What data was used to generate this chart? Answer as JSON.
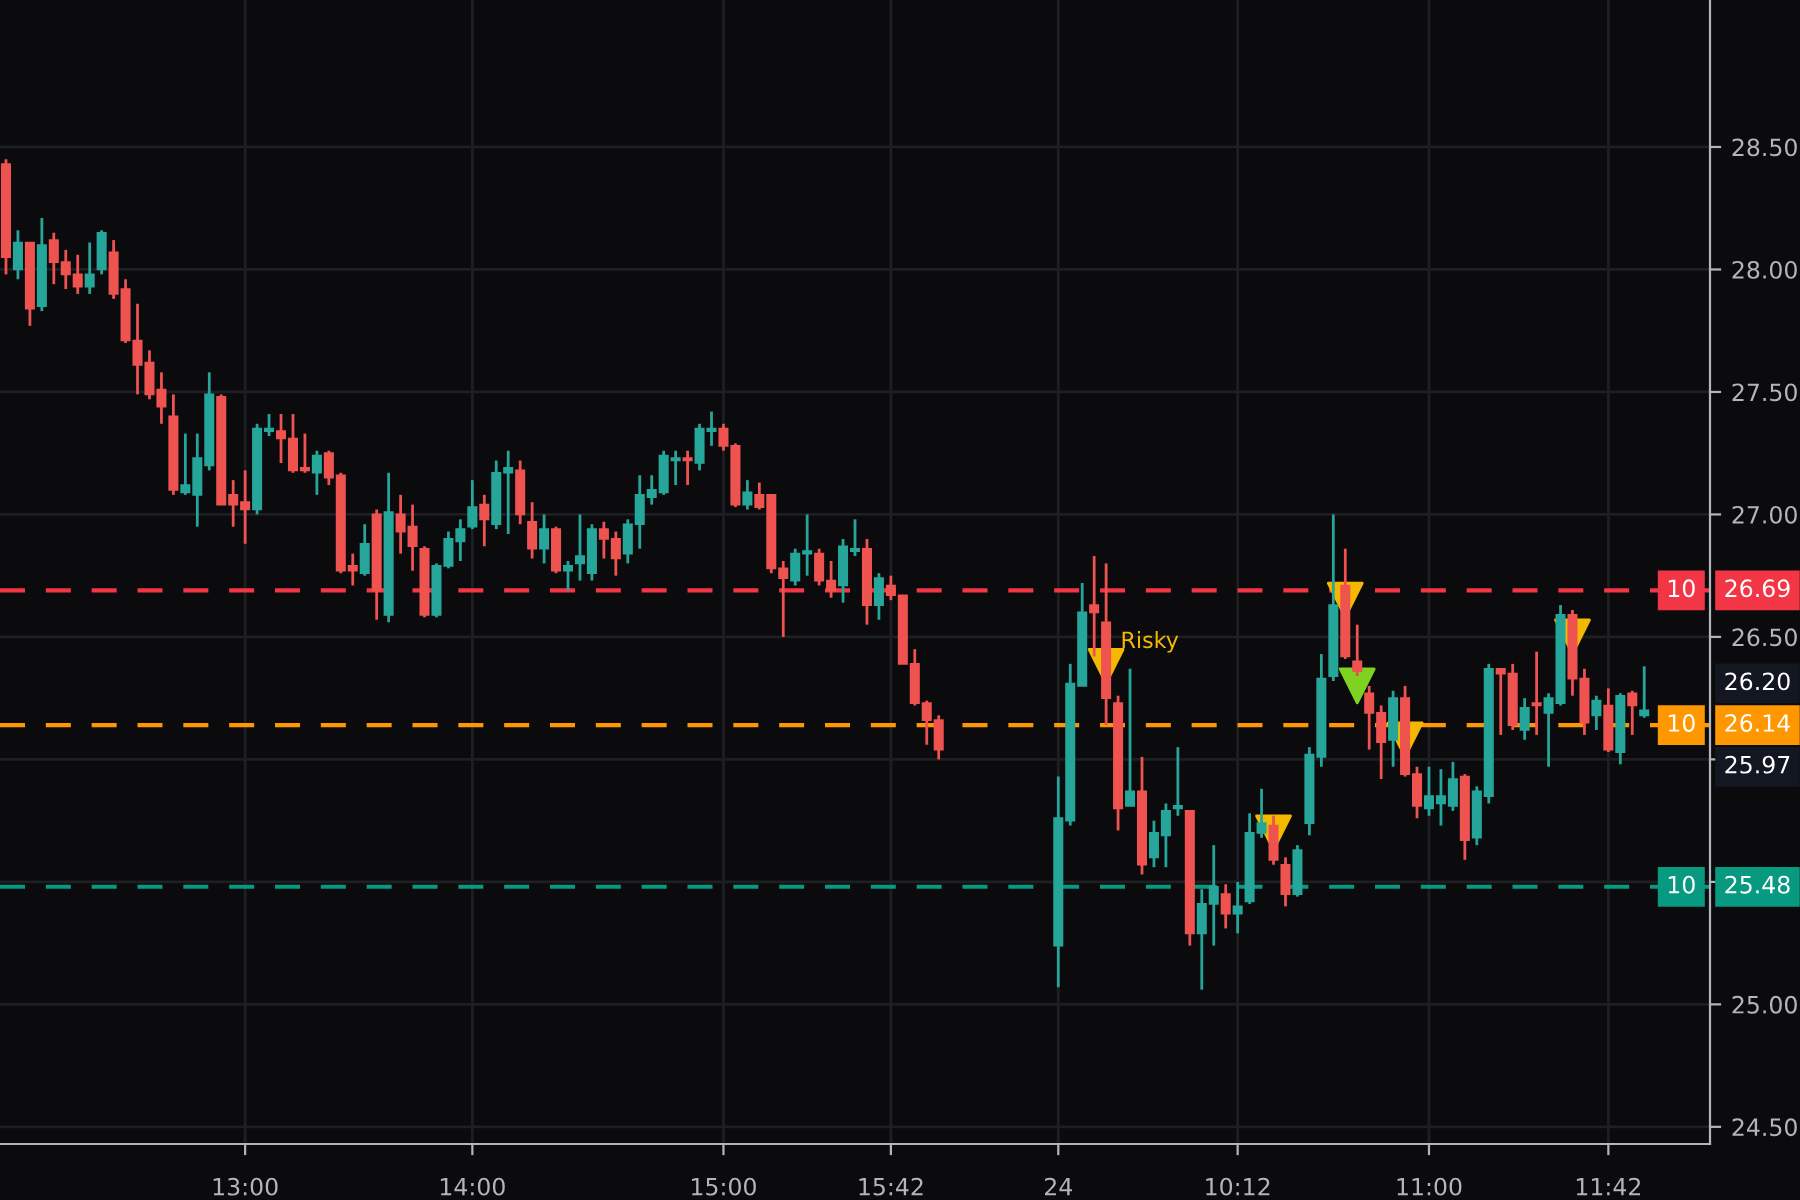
{
  "chart_data": {
    "type": "candlestick",
    "categories": [
      null,
      null,
      null,
      null,
      null,
      null,
      null,
      null,
      null,
      null,
      null,
      null,
      null,
      null,
      null,
      null,
      null,
      null,
      null,
      null,
      "13:00",
      null,
      null,
      null,
      null,
      null,
      null,
      null,
      null,
      null,
      null,
      null,
      null,
      null,
      null,
      null,
      null,
      null,
      null,
      "14:00",
      null,
      null,
      null,
      null,
      null,
      null,
      null,
      null,
      null,
      null,
      null,
      null,
      null,
      null,
      null,
      null,
      null,
      null,
      null,
      null,
      "15:00",
      null,
      null,
      null,
      null,
      null,
      null,
      null,
      null,
      null,
      null,
      null,
      null,
      null,
      "15:42",
      null,
      null,
      null,
      null,
      null,
      null,
      null,
      null,
      null,
      null,
      null,
      null,
      null,
      "24",
      null,
      null,
      null,
      null,
      null,
      null,
      null,
      null,
      null,
      null,
      null,
      null,
      null,
      null,
      "10:12",
      null,
      null,
      null,
      null,
      null,
      null,
      null,
      null,
      null,
      null,
      null,
      null,
      null,
      null,
      null,
      "11:00",
      null,
      null,
      null,
      null,
      null,
      null,
      null,
      null,
      null,
      null,
      null,
      null,
      null,
      null,
      "11:42",
      null,
      null,
      null,
      null,
      null,
      null,
      null,
      null
    ],
    "colors": [
      "#ef5350",
      "#26a69a",
      "#ef5350",
      "#26a69a",
      "#ef5350",
      "#ef5350",
      "#ef5350",
      "#26a69a",
      "#26a69a",
      "#ef5350",
      "#ef5350",
      "#ef5350",
      "#ef5350",
      "#ef5350",
      "#ef5350",
      "#26a69a",
      "#26a69a",
      "#26a69a",
      "#ef5350",
      "#ef5350",
      "#ef5350",
      "#26a69a",
      "#26a69a",
      "#ef5350",
      "#ef5350",
      "#ef5350",
      "#26a69a",
      "#ef5350",
      "#ef5350",
      "#ef5350",
      "#26a69a",
      "#ef5350",
      "#26a69a",
      "#ef5350",
      "#ef5350",
      "#ef5350",
      "#26a69a",
      "#26a69a",
      "#26a69a",
      "#26a69a",
      "#ef5350",
      "#26a69a",
      "#26a69a",
      "#ef5350",
      "#ef5350",
      "#26a69a",
      "#ef5350",
      "#26a69a",
      "#26a69a",
      "#26a69a",
      "#ef5350",
      "#ef5350",
      "#26a69a",
      "#26a69a",
      "#26a69a",
      "#26a69a",
      "#26a69a",
      "#ef5350",
      "#26a69a",
      "#26a69a",
      "#ef5350",
      "#ef5350",
      "#26a69a",
      "#ef5350",
      "#ef5350",
      "#ef5350",
      "#26a69a",
      "#26a69a",
      "#ef5350",
      "#ef5350",
      "#26a69a",
      "#26a69a",
      "#ef5350",
      "#26a69a",
      "#ef5350",
      "#ef5350",
      "#ef5350",
      "#ef5350",
      "#ef5350",
      null,
      null,
      null,
      null,
      null,
      null,
      null,
      null,
      null,
      "#26a69a",
      "#26a69a",
      "#26a69a",
      "#ef5350",
      "#ef5350",
      "#ef5350",
      "#26a69a",
      "#ef5350",
      "#26a69a",
      "#26a69a",
      "#26a69a",
      "#ef5350",
      "#26a69a",
      "#26a69a",
      "#ef5350",
      "#26a69a",
      "#26a69a",
      "#26a69a",
      "#ef5350",
      "#ef5350",
      "#26a69a",
      "#26a69a",
      "#26a69a",
      "#26a69a",
      "#ef5350",
      "#ef5350",
      "#ef5350",
      "#ef5350",
      "#26a69a",
      "#ef5350",
      "#ef5350",
      "#26a69a",
      "#26a69a",
      "#26a69a",
      "#ef5350",
      "#26a69a",
      "#26a69a",
      "#ef5350",
      "#ef5350",
      "#26a69a",
      "#ef5350",
      "#26a69a",
      "#26a69a",
      "#ef5350",
      "#ef5350",
      "#26a69a",
      "#ef5350",
      "#26a69a",
      "#ef5350",
      "#26a69a",
      null,
      null,
      null,
      null,
      null
    ],
    "ohlc": [
      [
        28.43,
        28.45,
        27.98,
        28.05
      ],
      [
        28.0,
        28.16,
        27.96,
        28.11
      ],
      [
        28.11,
        28.11,
        27.77,
        27.84
      ],
      [
        27.85,
        28.21,
        27.83,
        28.1
      ],
      [
        28.12,
        28.15,
        27.94,
        28.03
      ],
      [
        28.03,
        28.08,
        27.92,
        27.98
      ],
      [
        27.98,
        28.06,
        27.9,
        27.93
      ],
      [
        27.93,
        28.11,
        27.9,
        27.98
      ],
      [
        28.0,
        28.16,
        27.98,
        28.15
      ],
      [
        28.07,
        28.12,
        27.88,
        27.9
      ],
      [
        27.92,
        27.96,
        27.7,
        27.71
      ],
      [
        27.71,
        27.86,
        27.49,
        27.61
      ],
      [
        27.62,
        27.67,
        27.47,
        27.49
      ],
      [
        27.51,
        27.58,
        27.37,
        27.44
      ],
      [
        27.4,
        27.49,
        27.08,
        27.1
      ],
      [
        27.09,
        27.33,
        27.08,
        27.12
      ],
      [
        27.08,
        27.33,
        26.95,
        27.23
      ],
      [
        27.2,
        27.58,
        27.18,
        27.49
      ],
      [
        27.48,
        27.49,
        27.04,
        27.04
      ],
      [
        27.08,
        27.14,
        26.95,
        27.04
      ],
      [
        27.05,
        27.18,
        26.88,
        27.02
      ],
      [
        27.02,
        27.37,
        27.0,
        27.35
      ],
      [
        27.34,
        27.41,
        27.32,
        27.35
      ],
      [
        27.34,
        27.41,
        27.21,
        27.31
      ],
      [
        27.31,
        27.41,
        27.17,
        27.18
      ],
      [
        27.19,
        27.33,
        27.17,
        27.18
      ],
      [
        27.17,
        27.26,
        27.08,
        27.24
      ],
      [
        27.25,
        27.26,
        27.12,
        27.15
      ],
      [
        27.16,
        27.17,
        26.76,
        26.77
      ],
      [
        26.79,
        26.84,
        26.71,
        26.77
      ],
      [
        26.76,
        26.96,
        26.75,
        26.88
      ],
      [
        27.0,
        27.02,
        26.57,
        26.69
      ],
      [
        26.59,
        27.17,
        26.56,
        27.01
      ],
      [
        27.0,
        27.08,
        26.84,
        26.93
      ],
      [
        26.95,
        27.04,
        26.77,
        26.87
      ],
      [
        26.86,
        26.87,
        26.58,
        26.59
      ],
      [
        26.59,
        26.8,
        26.58,
        26.79
      ],
      [
        26.79,
        26.93,
        26.78,
        26.9
      ],
      [
        26.89,
        26.98,
        26.81,
        26.94
      ],
      [
        26.95,
        27.14,
        26.94,
        27.03
      ],
      [
        27.04,
        27.08,
        26.87,
        26.98
      ],
      [
        26.96,
        27.22,
        26.94,
        27.17
      ],
      [
        27.17,
        27.26,
        26.92,
        27.19
      ],
      [
        27.18,
        27.22,
        26.96,
        27.0
      ],
      [
        26.97,
        27.05,
        26.82,
        26.86
      ],
      [
        26.86,
        27.0,
        26.8,
        26.94
      ],
      [
        26.94,
        26.95,
        26.76,
        26.77
      ],
      [
        26.77,
        26.81,
        26.69,
        26.79
      ],
      [
        26.8,
        27.0,
        26.73,
        26.83
      ],
      [
        26.76,
        26.96,
        26.73,
        26.94
      ],
      [
        26.94,
        26.97,
        26.82,
        26.9
      ],
      [
        26.9,
        26.93,
        26.75,
        26.82
      ],
      [
        26.84,
        26.98,
        26.8,
        26.96
      ],
      [
        26.96,
        27.16,
        26.86,
        27.08
      ],
      [
        27.07,
        27.16,
        27.04,
        27.1
      ],
      [
        27.09,
        27.26,
        27.08,
        27.24
      ],
      [
        27.22,
        27.26,
        27.12,
        27.23
      ],
      [
        27.23,
        27.26,
        27.12,
        27.22
      ],
      [
        27.21,
        27.37,
        27.18,
        27.35
      ],
      [
        27.34,
        27.42,
        27.28,
        27.35
      ],
      [
        27.35,
        27.37,
        27.26,
        27.28
      ],
      [
        27.28,
        27.29,
        27.03,
        27.04
      ],
      [
        27.04,
        27.14,
        27.02,
        27.09
      ],
      [
        27.08,
        27.13,
        27.02,
        27.03
      ],
      [
        27.08,
        27.08,
        26.76,
        26.78
      ],
      [
        26.78,
        26.81,
        26.5,
        26.74
      ],
      [
        26.73,
        26.86,
        26.71,
        26.84
      ],
      [
        26.84,
        27.0,
        26.75,
        26.85
      ],
      [
        26.84,
        26.86,
        26.71,
        26.73
      ],
      [
        26.73,
        26.81,
        26.66,
        26.69
      ],
      [
        26.71,
        26.9,
        26.64,
        26.87
      ],
      [
        26.85,
        26.98,
        26.83,
        26.86
      ],
      [
        26.86,
        26.9,
        26.55,
        26.63
      ],
      [
        26.63,
        26.76,
        26.57,
        26.74
      ],
      [
        26.71,
        26.75,
        26.65,
        26.67
      ],
      [
        26.67,
        26.67,
        26.39,
        26.39
      ],
      [
        26.39,
        26.45,
        26.22,
        26.23
      ],
      [
        26.23,
        26.24,
        26.06,
        26.16
      ],
      [
        26.16,
        26.18,
        26.0,
        26.04
      ],
      null,
      null,
      null,
      null,
      null,
      null,
      null,
      null,
      null,
      [
        25.24,
        25.93,
        25.07,
        25.76
      ],
      [
        25.75,
        26.39,
        25.73,
        26.31
      ],
      [
        26.3,
        26.72,
        26.3,
        26.6
      ],
      [
        26.63,
        26.83,
        26.42,
        26.6
      ],
      [
        26.56,
        26.8,
        26.14,
        26.25
      ],
      [
        26.23,
        26.26,
        25.71,
        25.8
      ],
      [
        25.81,
        26.37,
        25.81,
        25.87
      ],
      [
        25.87,
        26.01,
        25.53,
        25.57
      ],
      [
        25.6,
        25.75,
        25.56,
        25.7
      ],
      [
        25.69,
        25.82,
        25.56,
        25.79
      ],
      [
        25.8,
        26.05,
        25.77,
        25.81
      ],
      [
        25.79,
        25.79,
        25.24,
        25.29
      ],
      [
        25.29,
        25.47,
        25.06,
        25.41
      ],
      [
        25.41,
        25.65,
        25.24,
        25.48
      ],
      [
        25.45,
        25.49,
        25.31,
        25.37
      ],
      [
        25.37,
        25.5,
        25.29,
        25.4
      ],
      [
        25.42,
        25.78,
        25.41,
        25.7
      ],
      [
        25.7,
        25.88,
        25.68,
        25.74
      ],
      [
        25.73,
        25.77,
        25.57,
        25.59
      ],
      [
        25.57,
        25.6,
        25.4,
        25.45
      ],
      [
        25.45,
        25.65,
        25.44,
        25.63
      ],
      [
        25.74,
        26.05,
        25.69,
        26.02
      ],
      [
        26.01,
        26.43,
        25.97,
        26.33
      ],
      [
        26.34,
        27.0,
        26.32,
        26.63
      ],
      [
        26.71,
        26.86,
        26.41,
        26.42
      ],
      [
        26.4,
        26.55,
        26.34,
        26.36
      ],
      [
        26.27,
        26.3,
        26.04,
        26.19
      ],
      [
        26.19,
        26.22,
        25.92,
        26.07
      ],
      [
        26.08,
        26.28,
        25.97,
        26.25
      ],
      [
        26.25,
        26.3,
        25.93,
        25.94
      ],
      [
        25.94,
        25.97,
        25.76,
        25.81
      ],
      [
        25.8,
        25.97,
        25.77,
        25.85
      ],
      [
        25.82,
        25.96,
        25.73,
        25.85
      ],
      [
        25.81,
        25.99,
        25.79,
        25.92
      ],
      [
        25.93,
        25.94,
        25.59,
        25.67
      ],
      [
        25.68,
        25.89,
        25.65,
        25.87
      ],
      [
        25.85,
        26.39,
        25.82,
        26.37
      ],
      [
        26.37,
        26.37,
        26.1,
        26.35
      ],
      [
        26.35,
        26.39,
        26.12,
        26.14
      ],
      [
        26.12,
        26.25,
        26.08,
        26.21
      ],
      [
        26.23,
        26.44,
        26.1,
        26.22
      ],
      [
        26.19,
        26.27,
        25.97,
        26.25
      ],
      [
        26.23,
        26.63,
        26.22,
        26.59
      ],
      [
        26.59,
        26.61,
        26.26,
        26.33
      ],
      [
        26.33,
        26.37,
        26.1,
        26.15
      ],
      [
        26.18,
        26.26,
        26.12,
        26.24
      ],
      [
        26.22,
        26.29,
        26.03,
        26.04
      ],
      [
        26.03,
        26.27,
        25.98,
        26.26
      ],
      [
        26.27,
        26.28,
        26.1,
        26.22
      ],
      [
        26.18,
        26.38,
        26.17,
        26.2
      ],
      null,
      null,
      null,
      null,
      null
    ],
    "series": [
      {
        "type": "scatter",
        "marker": "triangle",
        "color": "#f5b800",
        "values": [
          null,
          null,
          null,
          null,
          null,
          null,
          null,
          null,
          null,
          null,
          null,
          null,
          null,
          null,
          null,
          null,
          null,
          null,
          null,
          null,
          null,
          null,
          null,
          null,
          null,
          null,
          null,
          null,
          null,
          null,
          null,
          null,
          null,
          null,
          null,
          null,
          null,
          null,
          null,
          null,
          null,
          null,
          null,
          null,
          null,
          null,
          null,
          null,
          null,
          null,
          null,
          null,
          null,
          null,
          null,
          null,
          null,
          null,
          null,
          null,
          null,
          null,
          null,
          null,
          null,
          null,
          null,
          null,
          null,
          null,
          null,
          null,
          null,
          null,
          null,
          null,
          null,
          null,
          null,
          null,
          null,
          null,
          null,
          null,
          null,
          null,
          null,
          null,
          null,
          null,
          null,
          null,
          26.38,
          null,
          null,
          null,
          null,
          null,
          null,
          null,
          null,
          null,
          null,
          null,
          null,
          null,
          25.7,
          null,
          null,
          null,
          null,
          null,
          26.65,
          null,
          null,
          null,
          null,
          26.08,
          null,
          null,
          null,
          null,
          null,
          null,
          null,
          null,
          null,
          null,
          null,
          null,
          null,
          26.5,
          null,
          null,
          null,
          null,
          null,
          null,
          null,
          null,
          null,
          null,
          null
        ],
        "value_labels": [
          null,
          null,
          null,
          null,
          null,
          null,
          null,
          null,
          null,
          null,
          null,
          null,
          null,
          null,
          null,
          null,
          null,
          null,
          null,
          null,
          null,
          null,
          null,
          null,
          null,
          null,
          null,
          null,
          null,
          null,
          null,
          null,
          null,
          null,
          null,
          null,
          null,
          null,
          null,
          null,
          null,
          null,
          null,
          null,
          null,
          null,
          null,
          null,
          null,
          null,
          null,
          null,
          null,
          null,
          null,
          null,
          null,
          null,
          null,
          null,
          null,
          null,
          null,
          null,
          null,
          null,
          null,
          null,
          null,
          null,
          null,
          null,
          null,
          null,
          null,
          null,
          null,
          null,
          null,
          null,
          null,
          null,
          null,
          null,
          null,
          null,
          null,
          null,
          null,
          null,
          null,
          null,
          "Risky",
          null,
          null,
          null,
          null,
          null,
          null,
          null,
          null,
          null,
          null,
          null,
          null,
          null,
          null,
          null,
          null,
          null,
          null,
          null,
          null,
          null,
          null,
          null,
          null,
          null,
          null,
          null,
          null,
          null,
          null,
          null,
          null,
          null,
          null,
          null,
          null,
          null,
          null,
          null,
          null,
          null,
          null,
          null,
          null,
          null,
          null,
          null,
          null,
          null,
          null
        ]
      },
      {
        "type": "scatter",
        "marker": "triangle",
        "color": "#7ed321",
        "values": [
          null,
          null,
          null,
          null,
          null,
          null,
          null,
          null,
          null,
          null,
          null,
          null,
          null,
          null,
          null,
          null,
          null,
          null,
          null,
          null,
          null,
          null,
          null,
          null,
          null,
          null,
          null,
          null,
          null,
          null,
          null,
          null,
          null,
          null,
          null,
          null,
          null,
          null,
          null,
          null,
          null,
          null,
          null,
          null,
          null,
          null,
          null,
          null,
          null,
          null,
          null,
          null,
          null,
          null,
          null,
          null,
          null,
          null,
          null,
          null,
          null,
          null,
          null,
          null,
          null,
          null,
          null,
          null,
          null,
          null,
          null,
          null,
          null,
          null,
          null,
          null,
          null,
          null,
          null,
          null,
          null,
          null,
          null,
          null,
          null,
          null,
          null,
          null,
          null,
          null,
          null,
          null,
          null,
          null,
          null,
          null,
          null,
          null,
          null,
          null,
          null,
          null,
          null,
          null,
          null,
          null,
          null,
          null,
          null,
          null,
          null,
          null,
          null,
          26.3,
          null,
          null,
          null,
          null,
          null,
          null,
          null,
          null,
          null,
          null,
          null,
          null,
          null,
          null,
          null,
          null,
          null,
          null,
          null,
          null,
          null,
          null,
          null,
          null,
          null,
          null,
          null,
          null,
          null
        ]
      }
    ],
    "ylim": [
      24.43,
      29.1
    ],
    "yticks": [
      {
        "value": 24.5,
        "label": "24.50"
      },
      {
        "value": 25.0,
        "label": "25.00"
      },
      {
        "value": 25.5,
        "label": null
      },
      {
        "value": 26.0,
        "label": null
      },
      {
        "value": 26.5,
        "label": "26.50"
      },
      {
        "value": 27.0,
        "label": "27.00"
      },
      {
        "value": 27.5,
        "label": "27.50"
      },
      {
        "value": 28.0,
        "label": "28.00"
      },
      {
        "value": 28.5,
        "label": "28.50"
      }
    ],
    "ref_lines": [
      {
        "axis": "y",
        "value": 26.69,
        "label": "26.69",
        "color": "#f23645",
        "line_style": "dashed"
      },
      {
        "axis": "y",
        "value": 26.14,
        "label": "26.14",
        "color": "#ff9800",
        "line_style": "dashed"
      },
      {
        "axis": "y",
        "value": 25.48,
        "label": "25.48",
        "color": "#089981",
        "line_style": "dashed"
      }
    ],
    "annotations": [
      {
        "text": "10",
        "y": 26.69
      },
      {
        "text": "10",
        "y": 26.14
      },
      {
        "text": "10",
        "y": 25.48
      },
      "26.20",
      "25.97"
    ],
    "grid": true
  }
}
